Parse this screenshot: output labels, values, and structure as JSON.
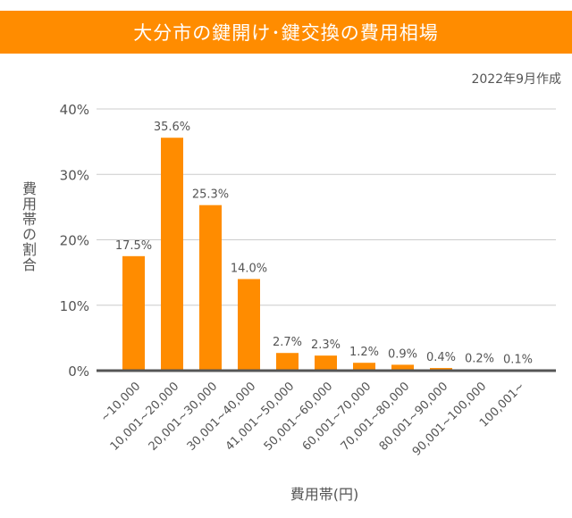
{
  "chart_data": {
    "type": "bar",
    "title": "大分市の鍵開け･鍵交換の費用相場",
    "subtitle": "2022年9月作成",
    "xlabel": "費用帯(円)",
    "ylabel": "費用帯の割合",
    "categories": [
      "~10,000",
      "10,001~20,000",
      "20,001~30,000",
      "30,001~40,000",
      "41,001~50,000",
      "50,001~60,000",
      "60,001~70,000",
      "70,001~80,000",
      "80,001~90,000",
      "90,001~100,000",
      "100,001~"
    ],
    "values": [
      17.5,
      35.6,
      25.3,
      14.0,
      2.7,
      2.3,
      1.2,
      0.9,
      0.4,
      0.2,
      0.1
    ],
    "data_labels": [
      "17.5%",
      "35.6%",
      "25.3%",
      "14.0%",
      "2.7%",
      "2.3%",
      "1.2%",
      "0.9%",
      "0.4%",
      "0.2%",
      "0.1%"
    ],
    "yticks": [
      "0%",
      "10%",
      "20%",
      "30%",
      "40%"
    ],
    "ylim": [
      0,
      40
    ],
    "grid": true,
    "bar_color": "#FF8C00",
    "header_color": "#FF8C00"
  }
}
